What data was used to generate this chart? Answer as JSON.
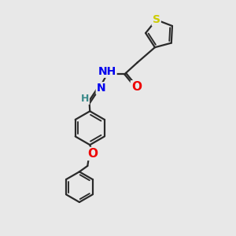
{
  "bg_color": "#e8e8e8",
  "bond_color": "#2a2a2a",
  "bond_width": 1.6,
  "atom_colors": {
    "S": "#cccc00",
    "N": "#0000ee",
    "O": "#ee0000",
    "H": "#3a8a8a",
    "C": "#2a2a2a"
  },
  "fig_width": 3.0,
  "fig_height": 3.0,
  "dpi": 100,
  "xlim": [
    0,
    10
  ],
  "ylim": [
    0,
    10
  ]
}
